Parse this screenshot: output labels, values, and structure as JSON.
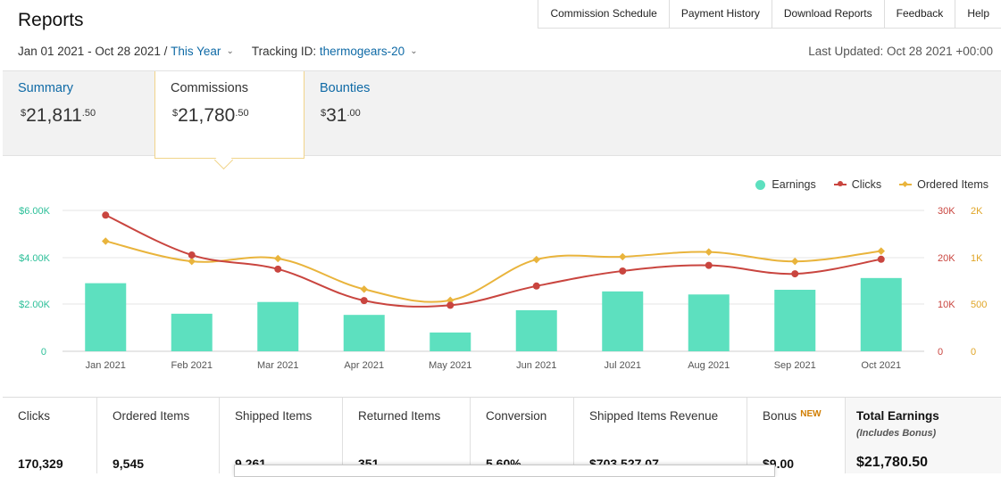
{
  "header": {
    "title": "Reports",
    "nav": [
      "Commission Schedule",
      "Payment History",
      "Download Reports",
      "Feedback",
      "Help"
    ]
  },
  "filters": {
    "date_range": "Jan 01 2021 - Oct 28 2021 /",
    "period": "This Year",
    "tracking_label": "Tracking ID:",
    "tracking_id": "thermogears-20",
    "last_updated": "Last Updated: Oct 28 2021 +00:00"
  },
  "tabs": [
    {
      "label": "Summary",
      "value_main": "21,811",
      "value_cents": "50",
      "currency": "$"
    },
    {
      "label": "Commissions",
      "value_main": "21,780",
      "value_cents": "50",
      "currency": "$"
    },
    {
      "label": "Bounties",
      "value_main": "31",
      "value_cents": "00",
      "currency": "$"
    }
  ],
  "colors": {
    "earnings": "#5de0bf",
    "clicks": "#c9453f",
    "ordered": "#e9b43c",
    "link": "#0f6aa6"
  },
  "chart_data": {
    "type": "bar",
    "categories": [
      "Jan 2021",
      "Feb 2021",
      "Mar 2021",
      "Apr 2021",
      "May 2021",
      "Jun 2021",
      "Jul 2021",
      "Aug 2021",
      "Sep 2021",
      "Oct 2021"
    ],
    "series": [
      {
        "name": "Earnings",
        "type": "bar",
        "axis": "left",
        "values": [
          2900,
          1600,
          2100,
          1550,
          800,
          1750,
          2550,
          2420,
          2620,
          3120
        ]
      },
      {
        "name": "Clicks",
        "type": "line",
        "axis": "right1",
        "values": [
          29000,
          20500,
          17500,
          10800,
          9800,
          13900,
          17100,
          18300,
          16500,
          19600
        ]
      },
      {
        "name": "Ordered Items",
        "type": "line",
        "axis": "right2",
        "values": [
          1350,
          960,
          990,
          660,
          540,
          980,
          1020,
          1120,
          960,
          1140
        ]
      }
    ],
    "left_axis": {
      "ticks": [
        "0",
        "$2.00K",
        "$4.00K",
        "$6.00K"
      ],
      "range": [
        0,
        6000
      ]
    },
    "right_axis_1": {
      "ticks": [
        "0",
        "10K",
        "20K",
        "30K"
      ],
      "range": [
        0,
        30000
      ]
    },
    "right_axis_2": {
      "ticks": [
        "0",
        "500",
        "1K",
        "2K"
      ],
      "range": [
        0,
        2000
      ]
    },
    "legend_position": "top-right"
  },
  "stats": [
    {
      "label": "Clicks",
      "value": "170,329"
    },
    {
      "label": "Ordered Items",
      "value": "9,545"
    },
    {
      "label": "Shipped Items",
      "value": "9,261"
    },
    {
      "label": "Returned Items",
      "value": "351"
    },
    {
      "label": "Conversion",
      "value": "5.60%"
    },
    {
      "label": "Shipped Items Revenue",
      "value": "$703,527.07"
    },
    {
      "label": "Bonus",
      "badge": "NEW",
      "value": "$9.00"
    },
    {
      "label": "Total Earnings",
      "sub": "(Includes Bonus)",
      "value": "$21,780.50"
    }
  ]
}
